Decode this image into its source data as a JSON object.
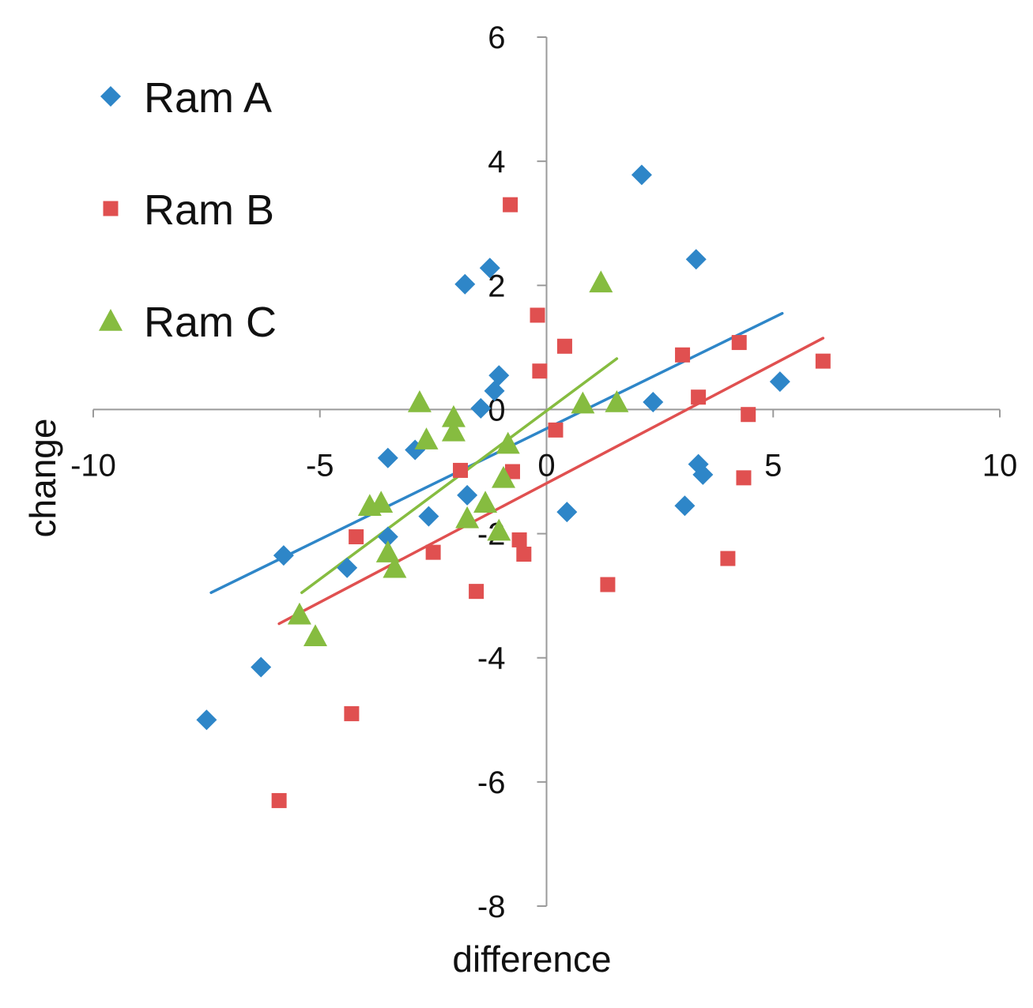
{
  "chart_data": {
    "type": "scatter",
    "xlabel": "difference",
    "ylabel": "change",
    "xlim": [
      -10,
      10
    ],
    "ylim": [
      -8,
      6
    ],
    "x_ticks": [
      "-10",
      "-5",
      "0",
      "5",
      "10"
    ],
    "y_ticks": [
      "6",
      "4",
      "2",
      "0",
      "-2",
      "-4",
      "-6",
      "-8"
    ],
    "legend_position": "top-left",
    "series": [
      {
        "name": "Ram A",
        "marker": "diamond",
        "color": "#2E86C8",
        "points": [
          [
            -7.5,
            -5.0
          ],
          [
            -6.3,
            -4.15
          ],
          [
            -5.8,
            -2.35
          ],
          [
            -4.4,
            -2.55
          ],
          [
            -3.5,
            -0.78
          ],
          [
            -3.5,
            -2.05
          ],
          [
            -2.9,
            -0.65
          ],
          [
            -2.6,
            -1.72
          ],
          [
            -1.8,
            2.02
          ],
          [
            -1.75,
            -1.38
          ],
          [
            -1.45,
            0.02
          ],
          [
            -1.25,
            2.28
          ],
          [
            -1.15,
            0.3
          ],
          [
            -1.05,
            0.55
          ],
          [
            0.45,
            -1.65
          ],
          [
            2.1,
            3.78
          ],
          [
            2.35,
            0.12
          ],
          [
            3.05,
            -1.55
          ],
          [
            3.3,
            2.42
          ],
          [
            3.35,
            -0.88
          ],
          [
            3.45,
            -1.05
          ],
          [
            5.15,
            0.45
          ]
        ],
        "trendline": [
          [
            -7.4,
            -2.95
          ],
          [
            5.2,
            1.55
          ]
        ]
      },
      {
        "name": "Ram B",
        "marker": "square",
        "color": "#E05050",
        "points": [
          [
            -5.9,
            -6.3
          ],
          [
            -4.3,
            -4.9
          ],
          [
            -4.2,
            -2.05
          ],
          [
            -2.5,
            -2.3
          ],
          [
            -1.9,
            -0.98
          ],
          [
            -1.55,
            -2.93
          ],
          [
            -0.8,
            3.3
          ],
          [
            -0.75,
            -1.0
          ],
          [
            -0.6,
            -2.1
          ],
          [
            -0.5,
            -2.33
          ],
          [
            -0.2,
            1.52
          ],
          [
            -0.15,
            0.62
          ],
          [
            0.2,
            -0.33
          ],
          [
            0.4,
            1.02
          ],
          [
            1.35,
            -2.82
          ],
          [
            3.0,
            0.88
          ],
          [
            3.35,
            0.2
          ],
          [
            4.0,
            -2.4
          ],
          [
            4.25,
            1.08
          ],
          [
            4.35,
            -1.1
          ],
          [
            4.45,
            -0.08
          ],
          [
            6.1,
            0.78
          ]
        ],
        "trendline": [
          [
            -5.9,
            -3.45
          ],
          [
            6.1,
            1.15
          ]
        ]
      },
      {
        "name": "Ram C",
        "marker": "triangle",
        "color": "#86BC40",
        "points": [
          [
            -5.45,
            -3.3
          ],
          [
            -5.1,
            -3.65
          ],
          [
            -3.9,
            -1.55
          ],
          [
            -3.65,
            -1.5
          ],
          [
            -3.5,
            -2.3
          ],
          [
            -3.35,
            -2.55
          ],
          [
            -2.8,
            0.12
          ],
          [
            -2.65,
            -0.48
          ],
          [
            -2.05,
            -0.12
          ],
          [
            -2.05,
            -0.35
          ],
          [
            -1.75,
            -1.75
          ],
          [
            -1.35,
            -1.5
          ],
          [
            -1.05,
            -1.95
          ],
          [
            -0.95,
            -1.1
          ],
          [
            -0.85,
            -0.55
          ],
          [
            0.8,
            0.1
          ],
          [
            1.2,
            2.05
          ],
          [
            1.55,
            0.12
          ]
        ],
        "trendline": [
          [
            -5.4,
            -2.95
          ],
          [
            1.55,
            0.82
          ]
        ]
      }
    ]
  }
}
